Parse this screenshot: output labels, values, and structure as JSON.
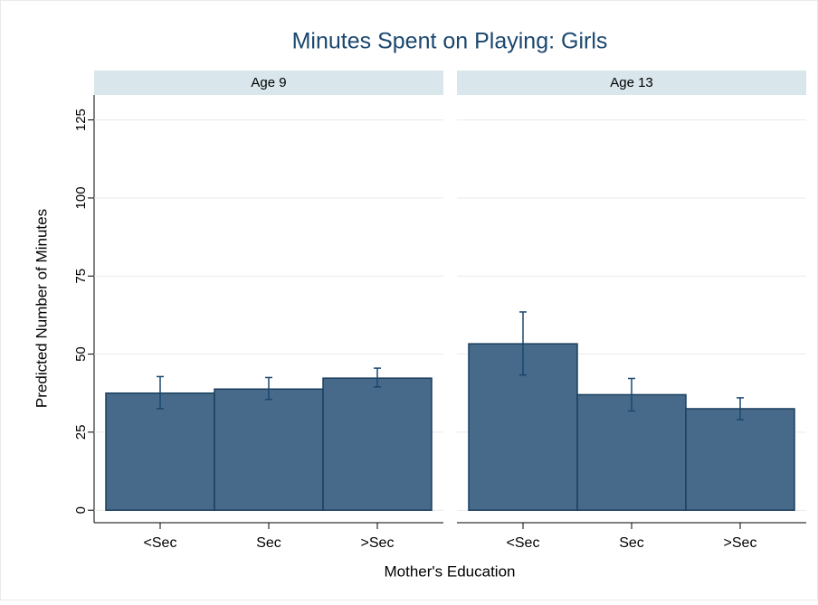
{
  "chart_data": {
    "type": "bar",
    "title": "Minutes Spent on Playing: Girls",
    "xlabel": "Mother's Education",
    "ylabel": "Predicted Number of Minutes",
    "ylim": [
      -4,
      133
    ],
    "yticks": [
      0,
      25,
      50,
      75,
      100,
      125
    ],
    "grid": true,
    "color": "#476a8a",
    "edgecolor": "#1c3f5e",
    "error_color": "#1a476f",
    "panels": [
      {
        "title": "Age 9",
        "categories": [
          "<Sec",
          "Sec",
          ">Sec"
        ],
        "values": [
          37.5,
          38.8,
          42.3
        ],
        "lower": [
          32.5,
          35.5,
          39.5
        ],
        "upper": [
          42.8,
          42.5,
          45.5
        ]
      },
      {
        "title": "Age 13",
        "categories": [
          "<Sec",
          "Sec",
          ">Sec"
        ],
        "values": [
          53.3,
          37,
          32.5
        ],
        "lower": [
          43.3,
          31.8,
          29
        ],
        "upper": [
          63.5,
          42.2,
          36
        ]
      }
    ]
  }
}
